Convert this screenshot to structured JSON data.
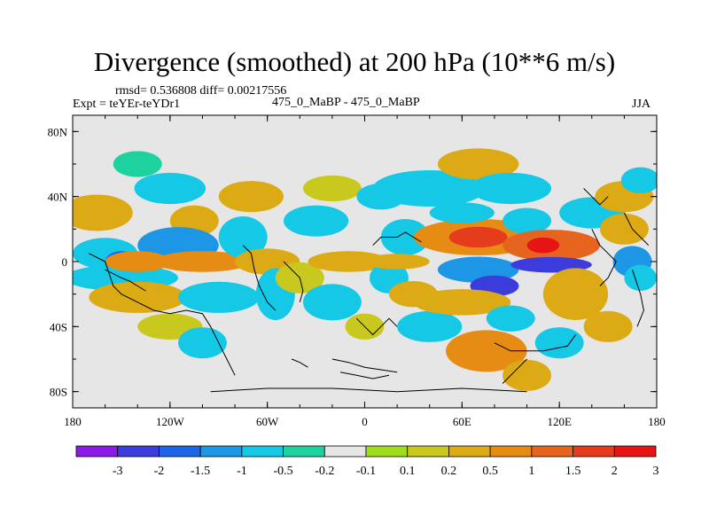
{
  "chart_data": {
    "type": "heatmap",
    "title": "Divergence (smoothed) at 200 hPa (10**6 m/s)",
    "stats": "rmsd= 0.536808 diff= 0.00217556",
    "experiment": "Expt = teYEr-teYDr1",
    "subtitle": "475_0_MaBP - 475_0_MaBP",
    "season": "JJA",
    "x_ticks": [
      "180",
      "120W",
      "60W",
      "0",
      "60E",
      "120E",
      "180"
    ],
    "y_ticks": [
      "80N",
      "40N",
      "0",
      "40S",
      "80S"
    ],
    "xlim": [
      -180,
      180
    ],
    "ylim": [
      -90,
      90
    ],
    "colorbar": {
      "labels": [
        "-3",
        "-2",
        "-1.5",
        "-1",
        "-0.5",
        "-0.2",
        "-0.1",
        "0.1",
        "0.2",
        "0.5",
        "1",
        "1.5",
        "2",
        "3"
      ],
      "colors": [
        "#8a1ae6",
        "#3c3cdc",
        "#1e64e6",
        "#1e96e6",
        "#14c8e6",
        "#1ed2a0",
        "#e6e6e6",
        "#a0dc1e",
        "#c8c81e",
        "#dcaa14",
        "#e68c14",
        "#e6641e",
        "#e63c1e",
        "#e61414"
      ]
    },
    "fields": [
      {
        "lon": -165,
        "lat": 30,
        "rx": 22,
        "ry": 7,
        "cat": 9
      },
      {
        "lon": -160,
        "lat": 5,
        "rx": 20,
        "ry": 6,
        "cat": 4
      },
      {
        "lon": -150,
        "lat": 0,
        "rx": 10,
        "ry": 4,
        "cat": 2
      },
      {
        "lon": -150,
        "lat": -10,
        "rx": 35,
        "ry": 5,
        "cat": 4
      },
      {
        "lon": -140,
        "lat": -22,
        "rx": 30,
        "ry": 6,
        "cat": 9
      },
      {
        "lon": -120,
        "lat": 45,
        "rx": 22,
        "ry": 6,
        "cat": 4
      },
      {
        "lon": -140,
        "lat": 60,
        "rx": 15,
        "ry": 5,
        "cat": 5
      },
      {
        "lon": -105,
        "lat": 25,
        "rx": 15,
        "ry": 6,
        "cat": 9
      },
      {
        "lon": -115,
        "lat": 10,
        "rx": 25,
        "ry": 7,
        "cat": 3
      },
      {
        "lon": -100,
        "lat": 0,
        "rx": 30,
        "ry": 4,
        "cat": 10
      },
      {
        "lon": -140,
        "lat": 0,
        "rx": 20,
        "ry": 4,
        "cat": 10
      },
      {
        "lon": -90,
        "lat": -22,
        "rx": 25,
        "ry": 6,
        "cat": 4
      },
      {
        "lon": -120,
        "lat": -40,
        "rx": 20,
        "ry": 5,
        "cat": 8
      },
      {
        "lon": -100,
        "lat": -50,
        "rx": 15,
        "ry": 6,
        "cat": 4
      },
      {
        "lon": -70,
        "lat": 40,
        "rx": 20,
        "ry": 6,
        "cat": 9
      },
      {
        "lon": -75,
        "lat": 15,
        "rx": 15,
        "ry": 8,
        "cat": 4
      },
      {
        "lon": -60,
        "lat": 0,
        "rx": 20,
        "ry": 5,
        "cat": 9
      },
      {
        "lon": -55,
        "lat": -20,
        "rx": 12,
        "ry": 10,
        "cat": 4
      },
      {
        "lon": -40,
        "lat": -10,
        "rx": 15,
        "ry": 6,
        "cat": 8
      },
      {
        "lon": -30,
        "lat": 25,
        "rx": 20,
        "ry": 6,
        "cat": 4
      },
      {
        "lon": -20,
        "lat": 45,
        "rx": 18,
        "ry": 5,
        "cat": 8
      },
      {
        "lon": -10,
        "lat": 0,
        "rx": 25,
        "ry": 4,
        "cat": 9
      },
      {
        "lon": -20,
        "lat": -25,
        "rx": 18,
        "ry": 7,
        "cat": 4
      },
      {
        "lon": 0,
        "lat": -40,
        "rx": 12,
        "ry": 5,
        "cat": 8
      },
      {
        "lon": 10,
        "lat": 40,
        "rx": 15,
        "ry": 5,
        "cat": 4
      },
      {
        "lon": 25,
        "lat": 15,
        "rx": 15,
        "ry": 7,
        "cat": 4
      },
      {
        "lon": 15,
        "lat": -10,
        "rx": 12,
        "ry": 6,
        "cat": 4
      },
      {
        "lon": 30,
        "lat": -20,
        "rx": 15,
        "ry": 5,
        "cat": 9
      },
      {
        "lon": 40,
        "lat": -40,
        "rx": 20,
        "ry": 6,
        "cat": 4
      },
      {
        "lon": 20,
        "lat": 0,
        "rx": 20,
        "ry": 3,
        "cat": 9
      },
      {
        "lon": 40,
        "lat": 45,
        "rx": 35,
        "ry": 7,
        "cat": 4
      },
      {
        "lon": 70,
        "lat": 60,
        "rx": 25,
        "ry": 6,
        "cat": 9
      },
      {
        "lon": 90,
        "lat": 45,
        "rx": 25,
        "ry": 6,
        "cat": 4
      },
      {
        "lon": 70,
        "lat": 15,
        "rx": 40,
        "ry": 7,
        "cat": 10
      },
      {
        "lon": 70,
        "lat": 15,
        "rx": 18,
        "ry": 4,
        "cat": 12
      },
      {
        "lon": 60,
        "lat": 30,
        "rx": 20,
        "ry": 4,
        "cat": 4
      },
      {
        "lon": 100,
        "lat": 25,
        "rx": 15,
        "ry": 5,
        "cat": 4
      },
      {
        "lon": 115,
        "lat": 10,
        "rx": 30,
        "ry": 6,
        "cat": 11
      },
      {
        "lon": 110,
        "lat": 10,
        "rx": 10,
        "ry": 3,
        "cat": 13
      },
      {
        "lon": 70,
        "lat": -5,
        "rx": 25,
        "ry": 5,
        "cat": 3
      },
      {
        "lon": 115,
        "lat": -2,
        "rx": 25,
        "ry": 3,
        "cat": 1
      },
      {
        "lon": 80,
        "lat": -15,
        "rx": 15,
        "ry": 4,
        "cat": 1
      },
      {
        "lon": 60,
        "lat": -25,
        "rx": 30,
        "ry": 5,
        "cat": 9
      },
      {
        "lon": 90,
        "lat": -35,
        "rx": 15,
        "ry": 5,
        "cat": 4
      },
      {
        "lon": 75,
        "lat": -55,
        "rx": 25,
        "ry": 8,
        "cat": 10
      },
      {
        "lon": 100,
        "lat": -70,
        "rx": 15,
        "ry": 6,
        "cat": 9
      },
      {
        "lon": 130,
        "lat": -20,
        "rx": 20,
        "ry": 10,
        "cat": 9
      },
      {
        "lon": 120,
        "lat": -50,
        "rx": 15,
        "ry": 6,
        "cat": 4
      },
      {
        "lon": 150,
        "lat": -40,
        "rx": 15,
        "ry": 6,
        "cat": 9
      },
      {
        "lon": 140,
        "lat": 30,
        "rx": 20,
        "ry": 6,
        "cat": 4
      },
      {
        "lon": 160,
        "lat": 20,
        "rx": 15,
        "ry": 6,
        "cat": 9
      },
      {
        "lon": 165,
        "lat": 0,
        "rx": 12,
        "ry": 6,
        "cat": 3
      },
      {
        "lon": 160,
        "lat": 40,
        "rx": 18,
        "ry": 6,
        "cat": 9
      },
      {
        "lon": 170,
        "lat": 50,
        "rx": 12,
        "ry": 5,
        "cat": 4
      },
      {
        "lon": 170,
        "lat": -10,
        "rx": 10,
        "ry": 5,
        "cat": 4
      }
    ],
    "coastlines": [
      [
        [
          -170,
          5
        ],
        [
          -160,
          0
        ],
        [
          -155,
          -15
        ],
        [
          -150,
          -20
        ],
        [
          -140,
          -25
        ],
        [
          -130,
          -30
        ],
        [
          -120,
          -32
        ],
        [
          -110,
          -30
        ],
        [
          -100,
          -32
        ],
        [
          -95,
          -40
        ],
        [
          -90,
          -50
        ],
        [
          -85,
          -60
        ],
        [
          -80,
          -70
        ]
      ],
      [
        [
          -160,
          -5
        ],
        [
          -150,
          -10
        ],
        [
          -145,
          -12
        ],
        [
          -140,
          -15
        ],
        [
          -135,
          -18
        ]
      ],
      [
        [
          -75,
          10
        ],
        [
          -70,
          5
        ],
        [
          -68,
          -5
        ],
        [
          -65,
          -15
        ],
        [
          -60,
          -25
        ],
        [
          -55,
          -30
        ]
      ],
      [
        [
          -50,
          0
        ],
        [
          -45,
          -5
        ],
        [
          -40,
          -10
        ],
        [
          -38,
          -18
        ],
        [
          -40,
          -25
        ]
      ],
      [
        [
          5,
          10
        ],
        [
          10,
          15
        ],
        [
          20,
          15
        ],
        [
          25,
          18
        ],
        [
          30,
          15
        ],
        [
          35,
          12
        ]
      ],
      [
        [
          -5,
          -35
        ],
        [
          0,
          -40
        ],
        [
          5,
          -45
        ],
        [
          10,
          -40
        ],
        [
          15,
          -35
        ],
        [
          20,
          -40
        ]
      ],
      [
        [
          -20,
          -60
        ],
        [
          -10,
          -62
        ],
        [
          0,
          -65
        ],
        [
          20,
          -68
        ]
      ],
      [
        [
          80,
          -50
        ],
        [
          90,
          -55
        ],
        [
          100,
          -55
        ],
        [
          110,
          -55
        ],
        [
          125,
          -52
        ],
        [
          130,
          -45
        ]
      ],
      [
        [
          100,
          -60
        ],
        [
          95,
          -65
        ],
        [
          90,
          -70
        ],
        [
          85,
          -75
        ]
      ],
      [
        [
          -95,
          -80
        ],
        [
          -60,
          -78
        ],
        [
          -20,
          -78
        ],
        [
          20,
          -80
        ],
        [
          60,
          -78
        ],
        [
          100,
          -80
        ]
      ],
      [
        [
          -45,
          -60
        ],
        [
          -40,
          -62
        ],
        [
          -35,
          -65
        ]
      ],
      [
        [
          -15,
          -68
        ],
        [
          -5,
          -70
        ],
        [
          5,
          -72
        ],
        [
          15,
          -70
        ]
      ],
      [
        [
          135,
          45
        ],
        [
          140,
          40
        ],
        [
          145,
          35
        ],
        [
          150,
          40
        ]
      ],
      [
        [
          140,
          20
        ],
        [
          145,
          10
        ],
        [
          150,
          5
        ],
        [
          155,
          0
        ],
        [
          150,
          -10
        ],
        [
          145,
          -15
        ]
      ],
      [
        [
          160,
          30
        ],
        [
          165,
          20
        ],
        [
          170,
          15
        ],
        [
          175,
          10
        ]
      ],
      [
        [
          165,
          -5
        ],
        [
          170,
          -20
        ],
        [
          172,
          -30
        ],
        [
          168,
          -40
        ]
      ]
    ]
  }
}
